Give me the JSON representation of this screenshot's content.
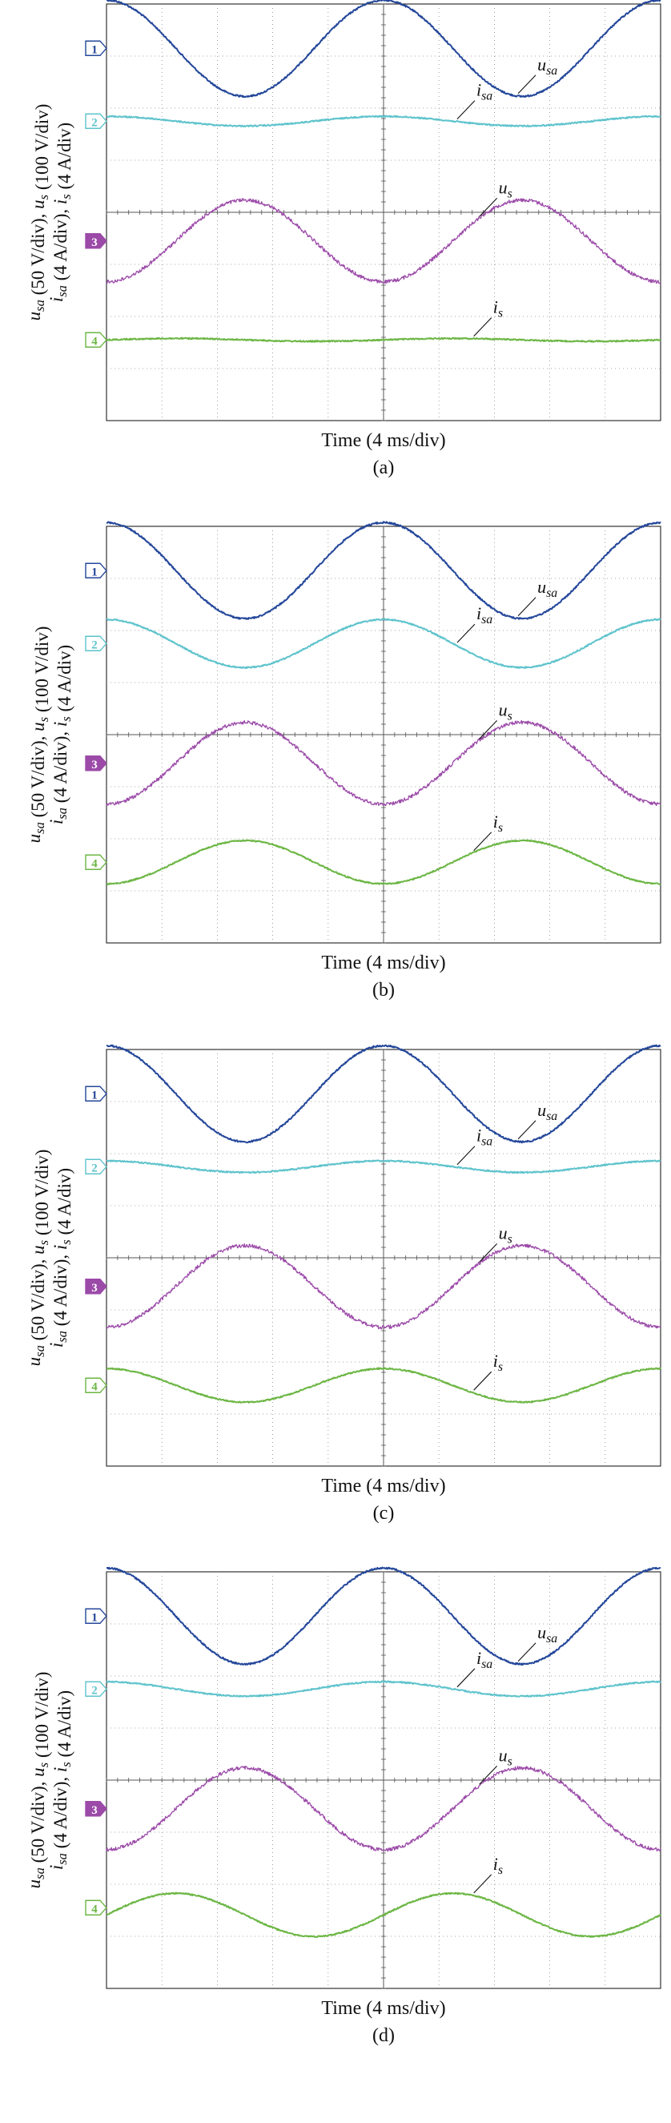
{
  "colors": {
    "ch1": "#24479a",
    "ch2": "#5ec3cc",
    "ch3": "#9b4aa8",
    "ch4": "#6cb644",
    "grid": "#8a8a8a",
    "frame": "#333333"
  },
  "chart_data": [
    {
      "type": "line",
      "panel_label": "(a)",
      "xlabel": "Time (4 ms/div)",
      "ylabel_top": "u_sa (50 V/div), u_s (100 V/div)",
      "ylabel_bottom": "i_sa (4 A/div), i_s (4 A/div)",
      "x_divisions": 10,
      "frequency_hz": 50,
      "grid": true,
      "channel_markers": [
        "1",
        "2",
        "3",
        "4"
      ],
      "series": [
        {
          "name": "u_sa",
          "channel": "1",
          "amplitude_div": 1.0,
          "offset_div": 0.0,
          "phase_deg": 90
        },
        {
          "name": "i_sa",
          "channel": "2",
          "amplitude_div": 0.1,
          "offset_div": 0.0,
          "phase_deg": 90
        },
        {
          "name": "u_s",
          "channel": "3",
          "amplitude_div": 0.85,
          "offset_div": 0.0,
          "phase_deg": -90
        },
        {
          "name": "i_s",
          "channel": "4",
          "amplitude_div": 0.03,
          "offset_div": 0.0,
          "phase_deg": 0
        }
      ]
    },
    {
      "type": "line",
      "panel_label": "(b)",
      "xlabel": "Time (4 ms/div)",
      "ylabel_top": "u_sa (50 V/div), u_s (100 V/div)",
      "ylabel_bottom": "i_sa (4 A/div), i_s (4 A/div)",
      "x_divisions": 10,
      "frequency_hz": 50,
      "grid": true,
      "channel_markers": [
        "1",
        "2",
        "3",
        "4"
      ],
      "series": [
        {
          "name": "u_sa",
          "channel": "1",
          "amplitude_div": 1.0,
          "offset_div": 0.0,
          "phase_deg": 90
        },
        {
          "name": "i_sa",
          "channel": "2",
          "amplitude_div": 0.5,
          "offset_div": 0.0,
          "phase_deg": 90
        },
        {
          "name": "u_s",
          "channel": "3",
          "amplitude_div": 0.85,
          "offset_div": 0.0,
          "phase_deg": -90
        },
        {
          "name": "i_s",
          "channel": "4",
          "amplitude_div": 0.45,
          "offset_div": 0.0,
          "phase_deg": -90
        }
      ]
    },
    {
      "type": "line",
      "panel_label": "(c)",
      "xlabel": "Time (4 ms/div)",
      "ylabel_top": "u_sa (50 V/div), u_s (100 V/div)",
      "ylabel_bottom": "i_sa (4 A/div), i_s (4 A/div)",
      "x_divisions": 10,
      "frequency_hz": 50,
      "grid": true,
      "channel_markers": [
        "1",
        "2",
        "3",
        "4"
      ],
      "series": [
        {
          "name": "u_sa",
          "channel": "1",
          "amplitude_div": 1.0,
          "offset_div": 0.0,
          "phase_deg": 90
        },
        {
          "name": "i_sa",
          "channel": "2",
          "amplitude_div": 0.12,
          "offset_div": 0.0,
          "phase_deg": 90
        },
        {
          "name": "u_s",
          "channel": "3",
          "amplitude_div": 0.85,
          "offset_div": 0.0,
          "phase_deg": -90
        },
        {
          "name": "i_s",
          "channel": "4",
          "amplitude_div": 0.35,
          "offset_div": 0.0,
          "phase_deg": 90
        }
      ]
    },
    {
      "type": "line",
      "panel_label": "(d)",
      "xlabel": "Time (4 ms/div)",
      "ylabel_top": "u_sa (50 V/div), u_s (100 V/div)",
      "ylabel_bottom": "i_sa (4 A/div), i_s (4 A/div)",
      "x_divisions": 10,
      "frequency_hz": 50,
      "grid": true,
      "channel_markers": [
        "1",
        "2",
        "3",
        "4"
      ],
      "series": [
        {
          "name": "u_sa",
          "channel": "1",
          "amplitude_div": 1.0,
          "offset_div": 0.0,
          "phase_deg": 90
        },
        {
          "name": "i_sa",
          "channel": "2",
          "amplitude_div": 0.15,
          "offset_div": 0.0,
          "phase_deg": 90
        },
        {
          "name": "u_s",
          "channel": "3",
          "amplitude_div": 0.85,
          "offset_div": 0.0,
          "phase_deg": -90
        },
        {
          "name": "i_s",
          "channel": "4",
          "amplitude_div": 0.45,
          "offset_div": -0.15,
          "phase_deg": 0
        }
      ]
    }
  ]
}
